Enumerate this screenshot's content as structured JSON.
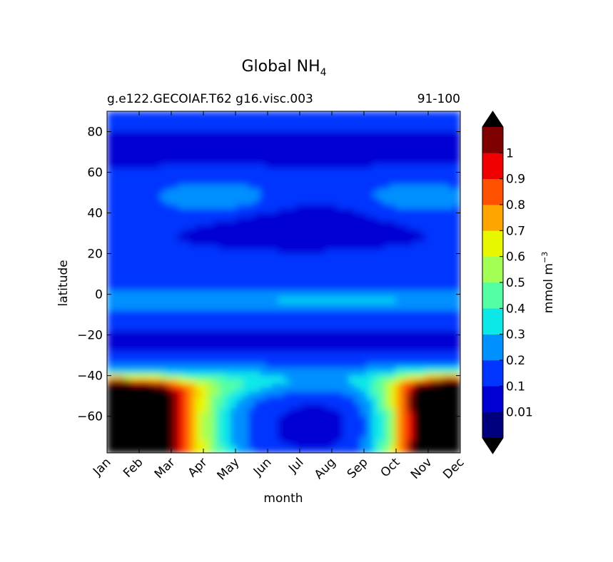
{
  "chart_data": {
    "type": "heatmap",
    "title": "Global NH",
    "title_subscript": "4",
    "subtitle_left": "g.e122.GECOIAF.T62 g16.visc.003",
    "subtitle_right": "91-100",
    "xlabel": "month",
    "ylabel": "latitude",
    "x_categories": [
      "Jan",
      "Feb",
      "Mar",
      "Apr",
      "May",
      "Jun",
      "Jul",
      "Aug",
      "Sep",
      "Oct",
      "Nov",
      "Dec"
    ],
    "y_ticks": [
      80,
      60,
      40,
      20,
      0,
      -20,
      -40,
      -60
    ],
    "y_tick_labels": [
      "80",
      "60",
      "40",
      "20",
      "0",
      "−20",
      "−40",
      "−60"
    ],
    "ylim": [
      -78,
      90
    ],
    "colorbar": {
      "label": "mmol m",
      "label_superscript": "−3",
      "levels": [
        0,
        0.01,
        0.1,
        0.2,
        0.3,
        0.4,
        0.5,
        0.6,
        0.7,
        0.8,
        0.9,
        1.0,
        1.1
      ],
      "tick_values": [
        0.01,
        0.1,
        0.2,
        0.3,
        0.4,
        0.5,
        0.6,
        0.7,
        0.8,
        0.9,
        1.0
      ],
      "tick_labels": [
        "0.01",
        "0.1",
        "0.2",
        "0.3",
        "0.4",
        "0.5",
        "0.6",
        "0.7",
        "0.8",
        "0.9",
        "1"
      ],
      "colors": [
        "#00007f",
        "#0000d4",
        "#0034ff",
        "#0090ff",
        "#0ce8e8",
        "#53ffa3",
        "#a3ff53",
        "#e8f600",
        "#ffa500",
        "#ff5200",
        "#f00000",
        "#7f0000"
      ],
      "under_color": "#000000",
      "over_color": "#000000",
      "extend": "both"
    },
    "grid": false
  }
}
